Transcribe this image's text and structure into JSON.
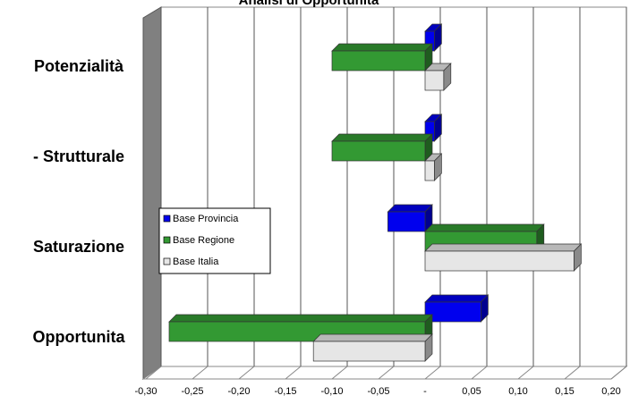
{
  "chart_data": {
    "type": "bar3d_horizontal",
    "title": "Analisi di Opportunita",
    "categories": [
      "Potenzialità",
      "- Strutturale",
      "Saturazione",
      "Opportunita"
    ],
    "series": [
      {
        "name": "Base Provincia",
        "color": "#0000ee",
        "values": [
          0.01,
          0.01,
          -0.04,
          0.06
        ]
      },
      {
        "name": "Base Regione",
        "color": "#339933",
        "values": [
          -0.1,
          -0.1,
          0.12,
          -0.275
        ]
      },
      {
        "name": "Base Italia",
        "color": "#e6e6e6",
        "values": [
          0.02,
          0.01,
          0.16,
          -0.12
        ]
      }
    ],
    "xlim": [
      -0.3,
      0.2
    ],
    "xticks": [
      {
        "value": -0.3,
        "label": "-0,30"
      },
      {
        "value": -0.25,
        "label": "-0,25"
      },
      {
        "value": -0.2,
        "label": "-0,20"
      },
      {
        "value": -0.15,
        "label": "-0,15"
      },
      {
        "value": -0.1,
        "label": "-0,10"
      },
      {
        "value": -0.05,
        "label": "-0,05"
      },
      {
        "value": 0,
        "label": "-"
      },
      {
        "value": 0.05,
        "label": "0,05"
      },
      {
        "value": 0.1,
        "label": "0,10"
      },
      {
        "value": 0.15,
        "label": "0,15"
      },
      {
        "value": 0.2,
        "label": "0,20"
      }
    ],
    "grid": true,
    "legend": "left"
  }
}
